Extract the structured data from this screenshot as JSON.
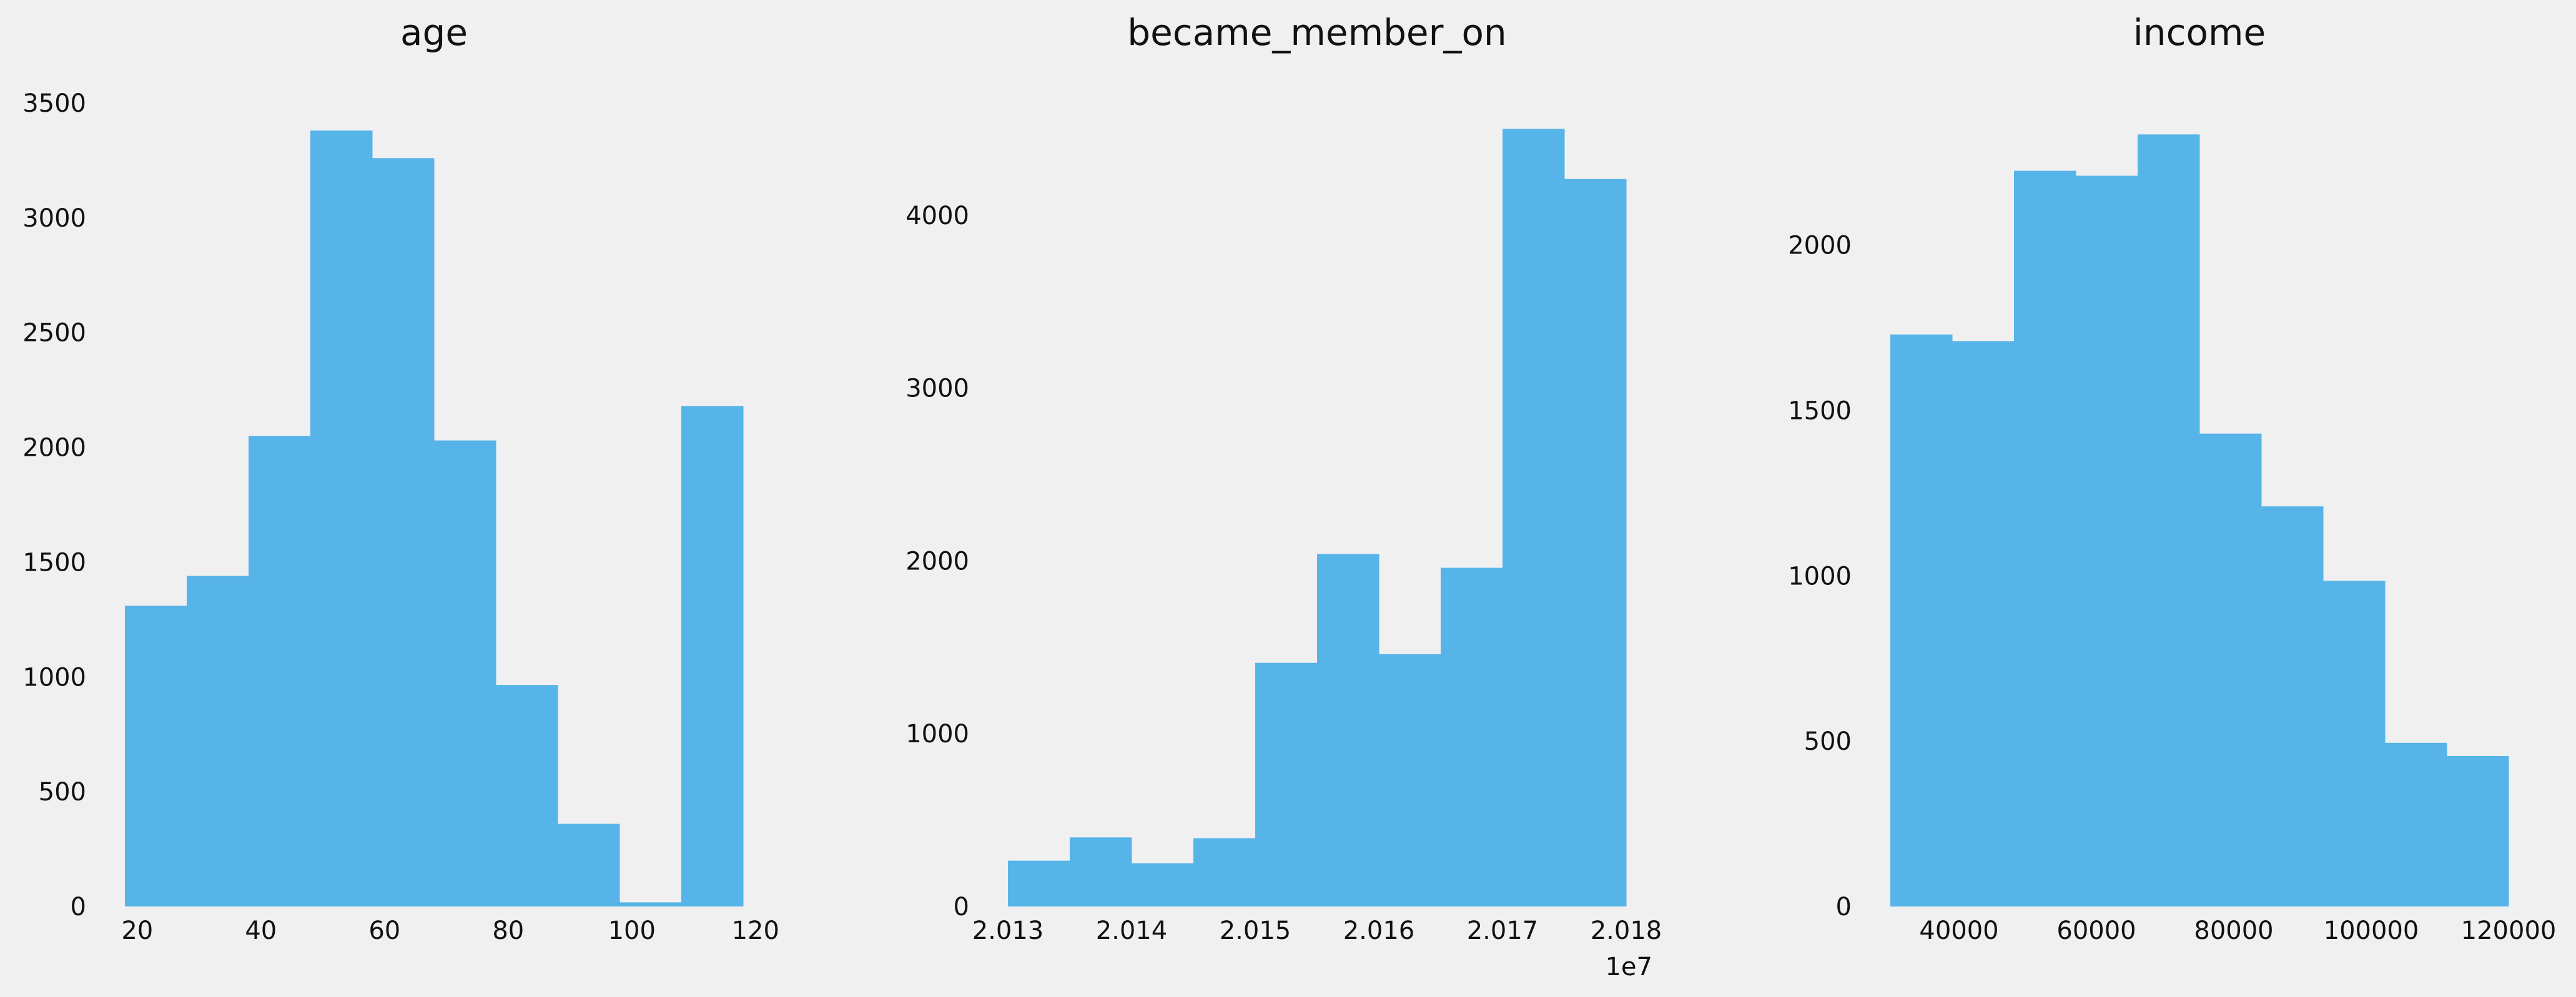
{
  "chart_data": [
    {
      "type": "bar",
      "title": "age",
      "xlim": [
        18,
        118
      ],
      "ylim": [
        0,
        3500
      ],
      "xticks": [
        20,
        40,
        60,
        80,
        100,
        120
      ],
      "yticks": [
        0,
        500,
        1000,
        1500,
        2000,
        2500,
        3000,
        3500
      ],
      "bin_edges": [
        18,
        28,
        38,
        48,
        58,
        68,
        78,
        88,
        98,
        108,
        118
      ],
      "values": [
        1310,
        1440,
        2050,
        3380,
        3260,
        2030,
        965,
        360,
        18,
        2180
      ],
      "grid": false
    },
    {
      "type": "bar",
      "title": "became_member_on",
      "offset_label": "1e7",
      "xlim": [
        2.013,
        2.018
      ],
      "ylim": [
        0,
        4650
      ],
      "xticks": [
        2.013,
        2.014,
        2.015,
        2.016,
        2.017,
        2.018
      ],
      "yticks": [
        0,
        1000,
        2000,
        3000,
        4000
      ],
      "bin_edges": [
        2.013,
        2.0135,
        2.014,
        2.0145,
        2.015,
        2.0155,
        2.016,
        2.0165,
        2.017,
        2.0175,
        2.018
      ],
      "values": [
        265,
        400,
        250,
        395,
        1410,
        2040,
        1460,
        1960,
        4500,
        4210
      ],
      "grid": false
    },
    {
      "type": "bar",
      "title": "income",
      "xlim": [
        30000,
        120000
      ],
      "ylim": [
        0,
        2430
      ],
      "xticks": [
        40000,
        60000,
        80000,
        100000,
        120000
      ],
      "yticks": [
        0,
        500,
        1000,
        1500,
        2000
      ],
      "bin_edges": [
        30000,
        39000,
        48000,
        57000,
        66000,
        75000,
        84000,
        93000,
        102000,
        111000,
        120000
      ],
      "values": [
        1730,
        1710,
        2225,
        2210,
        2335,
        1430,
        1210,
        985,
        495,
        455
      ],
      "grid": false
    }
  ]
}
